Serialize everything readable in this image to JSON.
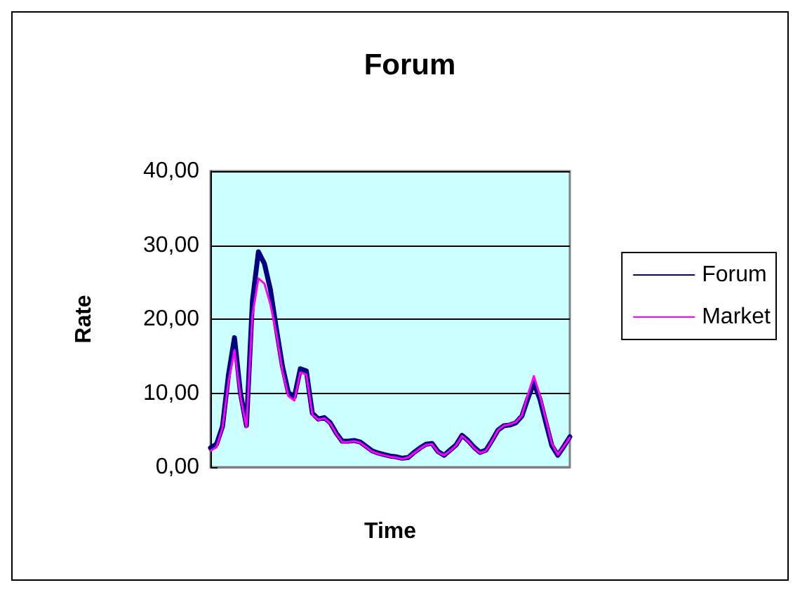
{
  "chart_data": {
    "type": "line",
    "title": "Forum",
    "xlabel": "Time",
    "ylabel": "Rate",
    "categories": [
      null,
      null,
      null,
      null,
      null,
      null,
      null,
      null,
      null,
      null,
      null,
      null,
      null,
      null,
      null,
      null,
      null,
      null,
      null,
      null,
      null,
      null,
      null,
      null,
      null,
      null,
      null,
      null,
      null,
      null,
      null,
      null,
      null,
      null,
      null,
      null,
      null,
      null,
      null,
      null,
      null,
      null,
      null,
      null,
      null,
      null,
      null,
      null,
      null,
      null,
      null,
      null,
      null,
      null,
      null,
      null,
      null,
      null,
      null,
      null,
      null
    ],
    "series": [
      {
        "name": "Forum",
        "color": "#000080",
        "values": [
          2.6,
          3.1,
          5.5,
          12.5,
          17.5,
          10.0,
          5.6,
          22.5,
          29.1,
          27.5,
          24.0,
          18.7,
          13.7,
          10.1,
          9.5,
          13.3,
          13.0,
          7.3,
          6.5,
          6.7,
          6.0,
          4.6,
          3.5,
          3.5,
          3.6,
          3.4,
          2.8,
          2.2,
          1.9,
          1.7,
          1.5,
          1.4,
          1.2,
          1.3,
          2.0,
          2.6,
          3.1,
          3.2,
          2.1,
          1.6,
          2.3,
          3.0,
          4.3,
          3.6,
          2.7,
          2.0,
          2.3,
          3.6,
          5.0,
          5.6,
          5.7,
          6.0,
          6.9,
          9.3,
          11.4,
          9.2,
          6.0,
          2.9,
          1.6,
          2.8,
          4.1
        ]
      },
      {
        "name": "Market",
        "color": "#ff00ff",
        "values": [
          2.2,
          2.7,
          5.3,
          11.5,
          15.8,
          9.5,
          5.4,
          20.5,
          25.5,
          24.8,
          22.0,
          18.0,
          13.0,
          9.6,
          9.0,
          12.8,
          12.5,
          7.1,
          6.4,
          6.6,
          5.9,
          4.5,
          3.4,
          3.4,
          3.5,
          3.3,
          2.7,
          2.1,
          1.8,
          1.6,
          1.4,
          1.3,
          1.1,
          1.3,
          1.9,
          2.5,
          3.0,
          3.1,
          2.0,
          1.6,
          2.2,
          2.9,
          4.2,
          3.5,
          2.6,
          1.9,
          2.2,
          3.5,
          5.0,
          5.6,
          5.8,
          6.1,
          7.0,
          9.8,
          12.3,
          9.7,
          6.5,
          3.2,
          1.7,
          2.8,
          4.0
        ]
      }
    ],
    "ylim": [
      0,
      40
    ],
    "yticks": [
      {
        "value": 0,
        "label": "0,00"
      },
      {
        "value": 10,
        "label": "10,00"
      },
      {
        "value": 20,
        "label": "20,00"
      },
      {
        "value": 30,
        "label": "30,00"
      },
      {
        "value": 40,
        "label": "40,00"
      }
    ],
    "grid": "y",
    "legend": "right",
    "marker": "none",
    "line_style": "solid"
  }
}
